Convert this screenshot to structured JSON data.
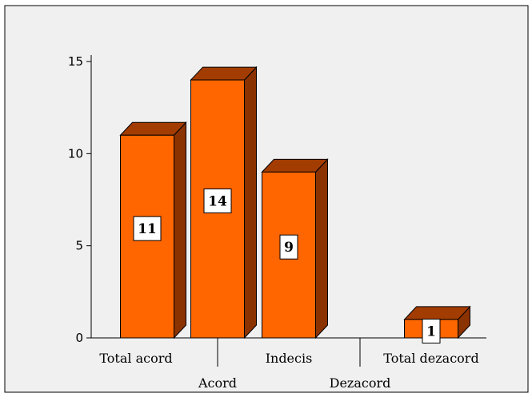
{
  "chart_data": {
    "type": "bar",
    "style": "3d-column",
    "categories": [
      "Total acord",
      "Acord",
      "Indecis",
      "Dezacord",
      "Total dezacord"
    ],
    "values": [
      11,
      14,
      9,
      0,
      1
    ],
    "data_labels": [
      "11",
      "14",
      "9",
      "",
      "1"
    ],
    "ylim": [
      0,
      15
    ],
    "yticks": [
      "0",
      "5",
      "10",
      "15"
    ],
    "xlabel": "",
    "ylabel": "",
    "grid": false,
    "legend": "none",
    "colors": {
      "background": "#f0f0f0",
      "bar_front": "#ff6600",
      "bar_top": "#a33c00",
      "bar_side": "#8a3200",
      "border": "#000000"
    }
  }
}
